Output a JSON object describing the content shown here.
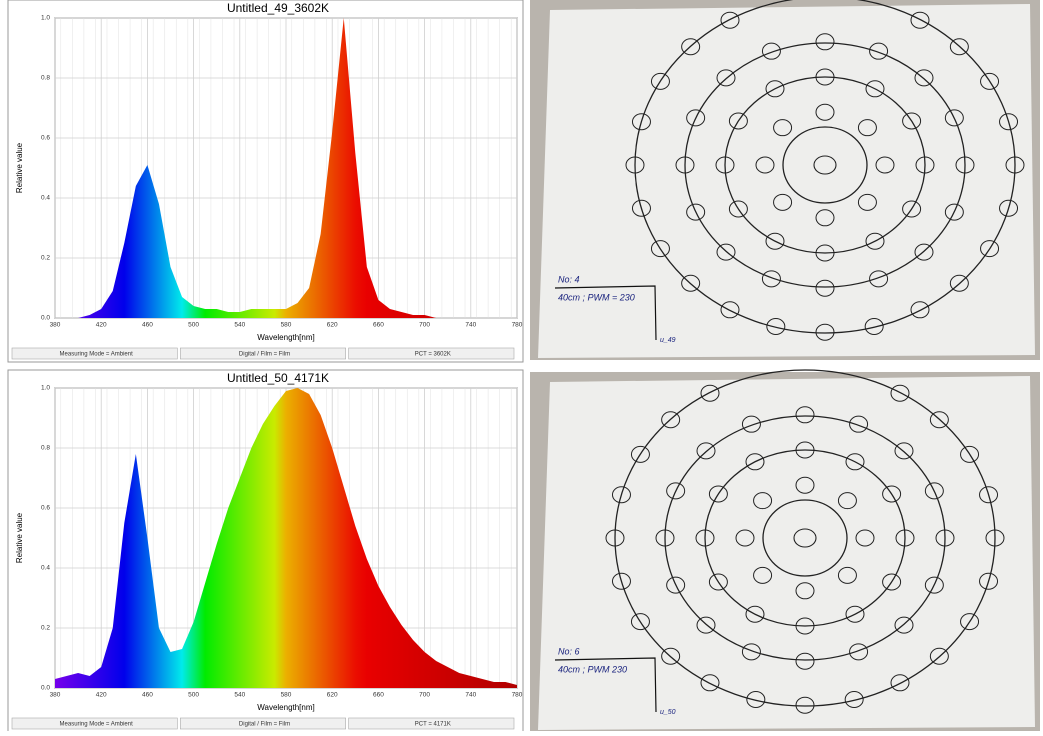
{
  "chart_data": [
    {
      "type": "area",
      "title": "Untitled_49_3602K",
      "xlabel": "Wavelength[nm]",
      "ylabel": "Relative value",
      "x": [
        380,
        390,
        400,
        410,
        420,
        430,
        440,
        450,
        460,
        470,
        480,
        490,
        500,
        510,
        520,
        530,
        540,
        550,
        560,
        570,
        580,
        590,
        600,
        610,
        620,
        630,
        640,
        650,
        660,
        670,
        680,
        690,
        700,
        710,
        720,
        730,
        740,
        750,
        760,
        770,
        780
      ],
      "values": [
        0,
        0,
        0,
        0.01,
        0.03,
        0.09,
        0.25,
        0.44,
        0.51,
        0.38,
        0.17,
        0.07,
        0.04,
        0.03,
        0.03,
        0.02,
        0.02,
        0.03,
        0.03,
        0.03,
        0.03,
        0.05,
        0.1,
        0.28,
        0.62,
        1.0,
        0.55,
        0.17,
        0.06,
        0.03,
        0.02,
        0.01,
        0.01,
        0,
        0,
        0,
        0,
        0,
        0,
        0,
        0
      ],
      "xlim": [
        380,
        780
      ],
      "xticks": [
        380,
        420,
        460,
        500,
        540,
        580,
        620,
        660,
        700,
        740,
        780
      ],
      "ylim": [
        0,
        1
      ],
      "yticks": [
        {
          "value": 0,
          "label": "0.0"
        },
        0.2,
        0.4,
        0.6,
        0.8,
        {
          "value": 1,
          "label": "1.0"
        }
      ],
      "grid": true,
      "status": [
        "Measuring Mode = Ambient",
        "Digital / Film = Film",
        "PCT = 3602K"
      ]
    },
    {
      "type": "area",
      "title": "Untitled_50_4171K",
      "xlabel": "Wavelength[nm]",
      "ylabel": "Relative value",
      "x": [
        380,
        390,
        400,
        410,
        420,
        430,
        440,
        450,
        460,
        470,
        480,
        490,
        500,
        510,
        520,
        530,
        540,
        550,
        560,
        570,
        580,
        590,
        600,
        610,
        620,
        630,
        640,
        650,
        660,
        670,
        680,
        690,
        700,
        710,
        720,
        730,
        740,
        750,
        760,
        770,
        780
      ],
      "values": [
        0.03,
        0.04,
        0.05,
        0.04,
        0.07,
        0.2,
        0.55,
        0.78,
        0.5,
        0.2,
        0.12,
        0.13,
        0.22,
        0.35,
        0.48,
        0.6,
        0.7,
        0.8,
        0.88,
        0.94,
        0.99,
        1.0,
        0.98,
        0.91,
        0.8,
        0.67,
        0.54,
        0.43,
        0.34,
        0.27,
        0.21,
        0.16,
        0.12,
        0.09,
        0.07,
        0.05,
        0.04,
        0.03,
        0.02,
        0.02,
        0.01
      ],
      "xlim": [
        380,
        780
      ],
      "xticks": [
        380,
        420,
        460,
        500,
        540,
        580,
        620,
        660,
        700,
        740,
        780
      ],
      "ylim": [
        0,
        1
      ],
      "yticks": [
        {
          "value": 0,
          "label": "0.0"
        },
        0.2,
        0.4,
        0.6,
        0.8,
        {
          "value": 1,
          "label": "1.0"
        }
      ],
      "grid": true,
      "status": [
        "Measuring Mode = Ambient",
        "Digital / Film = Film",
        "PCT = 4171K"
      ]
    }
  ],
  "photos": [
    {
      "notes": [
        "No: 4",
        "40cm ; PWM = 230",
        "u_49"
      ]
    },
    {
      "notes": [
        "No: 6",
        "40cm ; PWM 230",
        "u_50"
      ]
    }
  ]
}
